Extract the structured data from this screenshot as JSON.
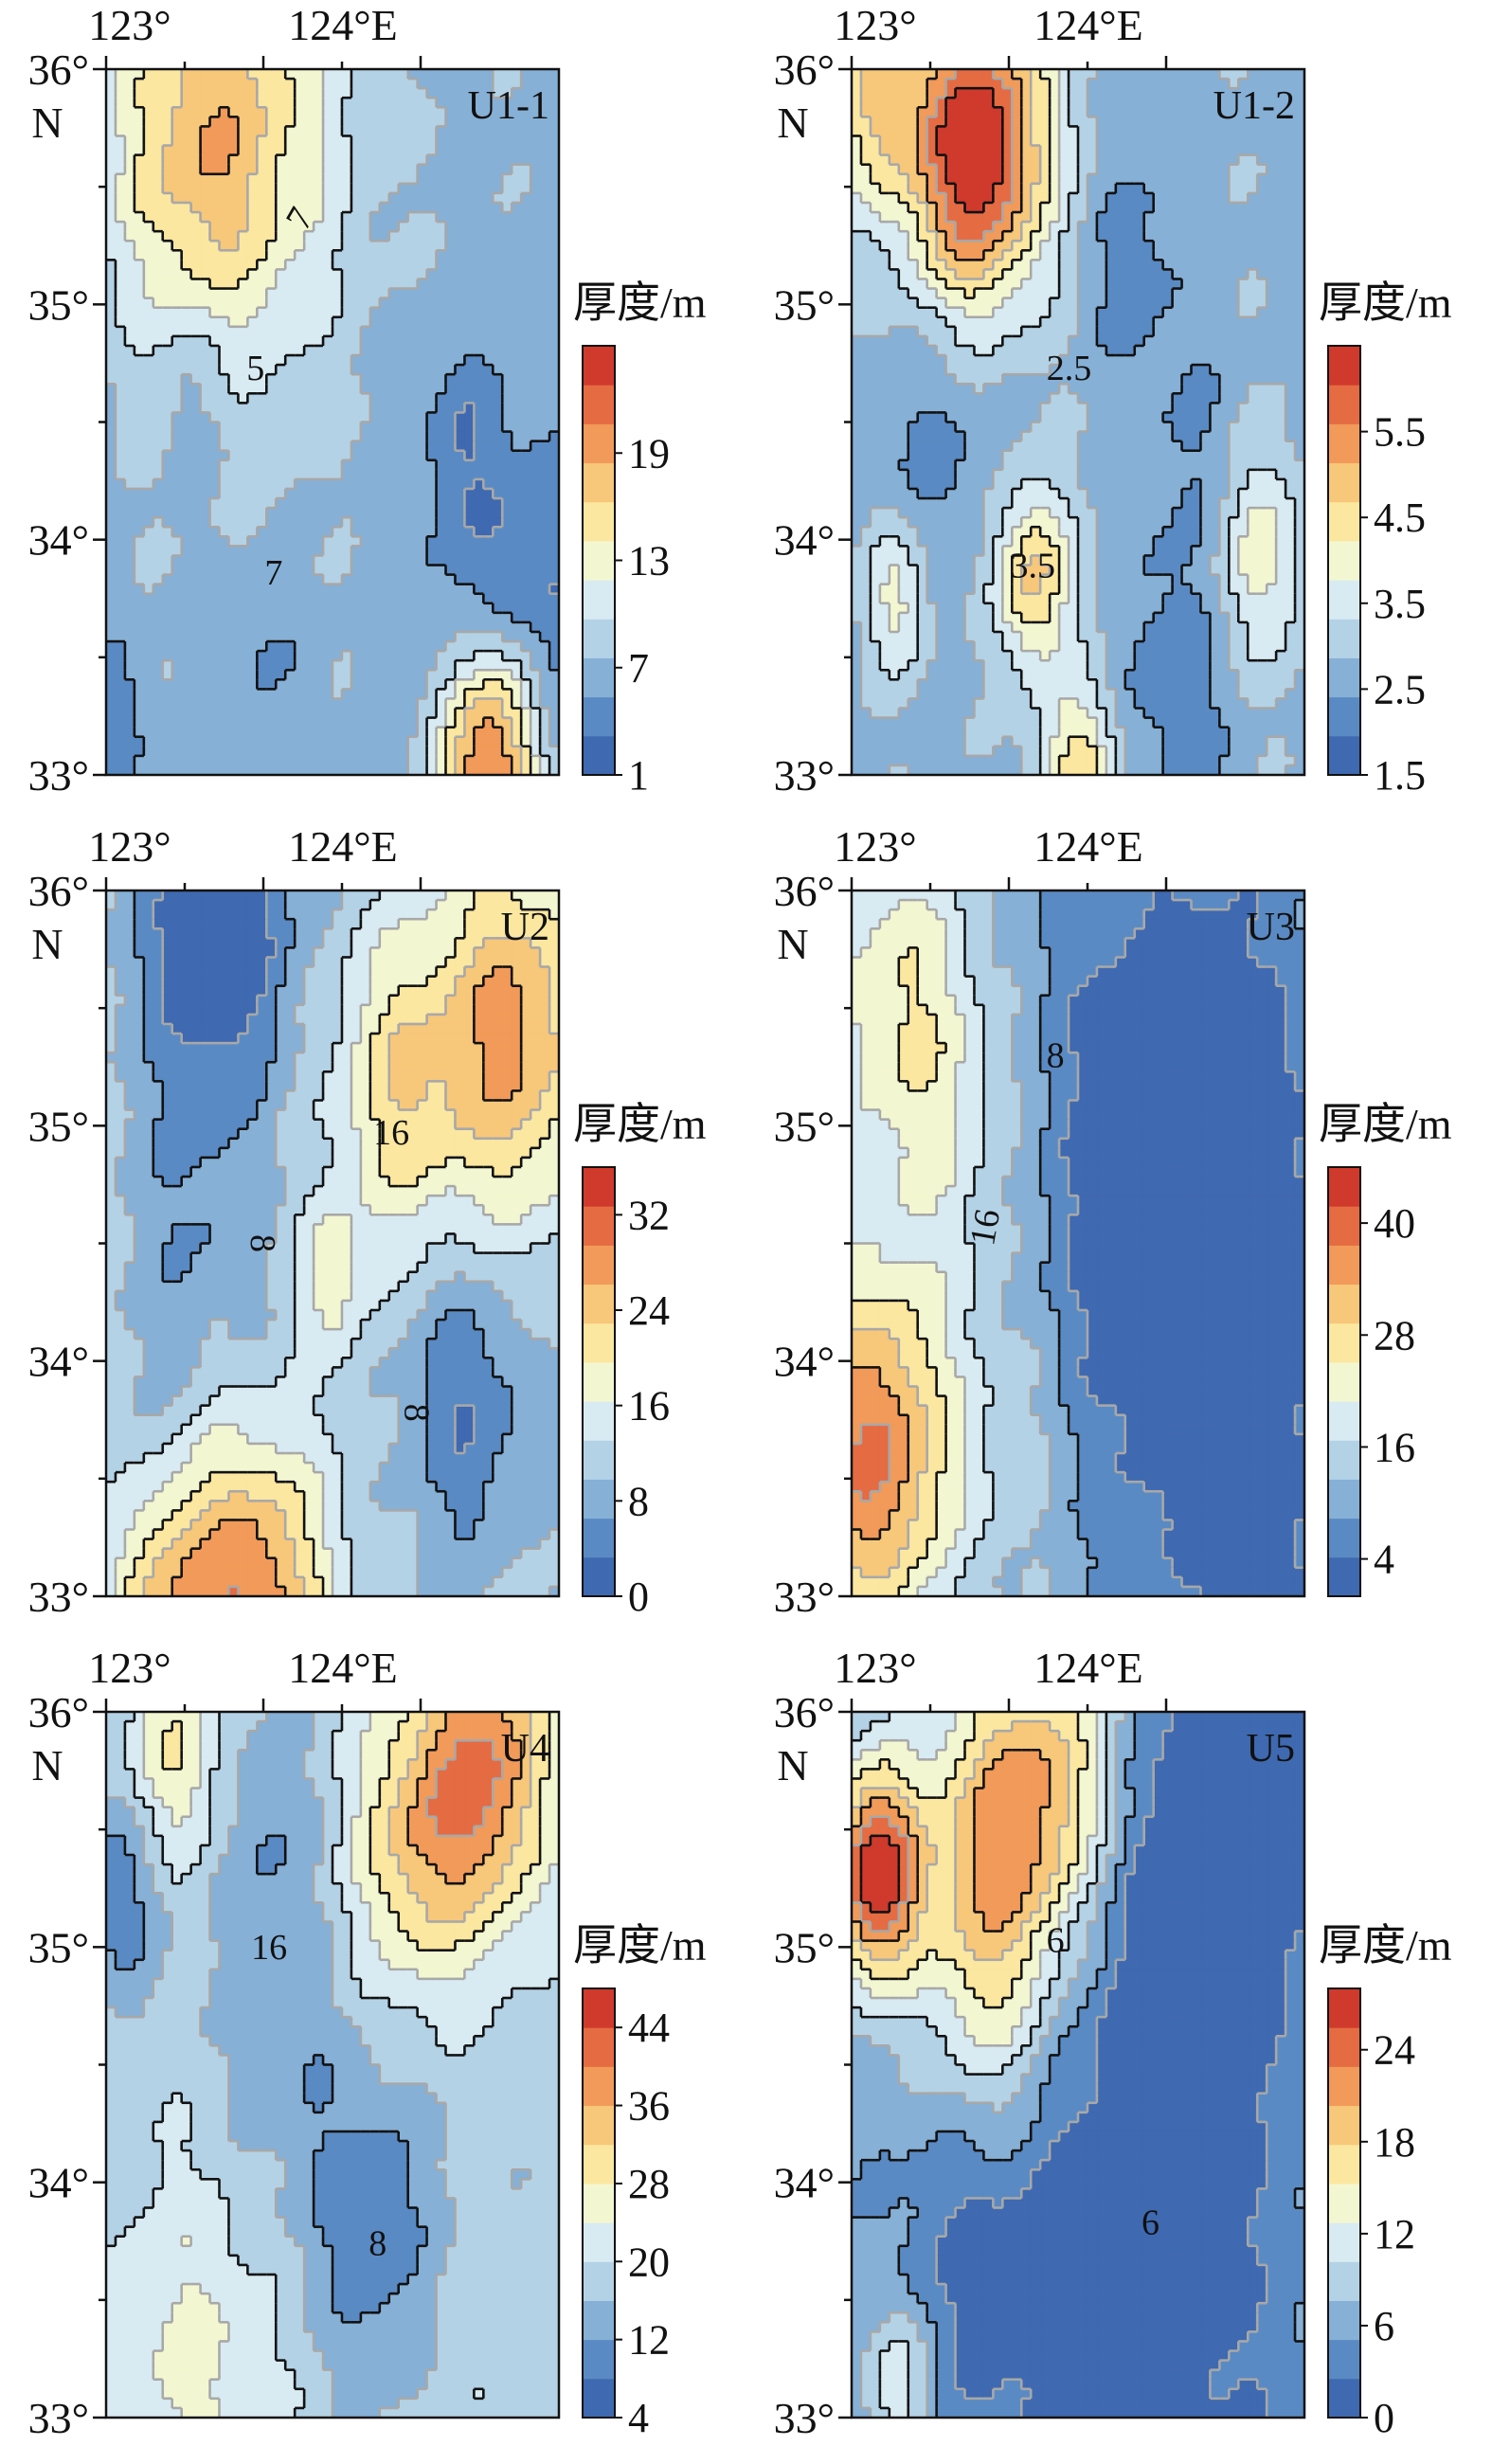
{
  "figure": {
    "colors": {
      "scale": [
        "#3f69b0",
        "#5a8ac3",
        "#86b0d6",
        "#b4d2e6",
        "#d9ebf2",
        "#f3f7d1",
        "#fbe7a0",
        "#f7c77a",
        "#f19a59",
        "#e56b43",
        "#cf3a2c"
      ],
      "contour_line": "#111111",
      "minor_contour": "#a8a8a8",
      "frame": "#111111"
    },
    "axes": {
      "x_ticks": [
        "123°",
        "124°E"
      ],
      "y_ticks": [
        "36°",
        "35°",
        "34°",
        "33°"
      ],
      "y_unit": "N"
    },
    "panels": [
      {
        "id": "U1-1",
        "label": "U1-1",
        "colorbar": {
          "title": "厚度/m",
          "ticks": [
            "19",
            "13",
            "7",
            "1"
          ],
          "range": [
            1,
            25
          ]
        },
        "contour_labels": [
          "7",
          "5",
          "7"
        ],
        "field_range": [
          1,
          25
        ]
      },
      {
        "id": "U1-2",
        "label": "U1-2",
        "colorbar": {
          "title": "厚度/m",
          "ticks": [
            "5.5",
            "4.5",
            "3.5",
            "2.5",
            "1.5"
          ],
          "range": [
            1.5,
            6.5
          ]
        },
        "contour_labels": [
          "2.5",
          "3.5"
        ],
        "field_range": [
          1.5,
          6.5
        ]
      },
      {
        "id": "U2",
        "label": "U2",
        "colorbar": {
          "title": "厚度/m",
          "ticks": [
            "32",
            "24",
            "16",
            "8",
            "0"
          ],
          "range": [
            0,
            36
          ]
        },
        "contour_labels": [
          "16",
          "8",
          "8"
        ],
        "field_range": [
          0,
          36
        ]
      },
      {
        "id": "U3",
        "label": "U3",
        "colorbar": {
          "title": "厚度/m",
          "ticks": [
            "40",
            "28",
            "16",
            "4"
          ],
          "range": [
            0,
            46
          ]
        },
        "contour_labels": [
          "8",
          "16"
        ],
        "field_range": [
          0,
          46
        ]
      },
      {
        "id": "U4",
        "label": "U4",
        "colorbar": {
          "title": "厚度/m",
          "ticks": [
            "44",
            "36",
            "28",
            "20",
            "12",
            "4"
          ],
          "range": [
            4,
            48
          ]
        },
        "contour_labels": [
          "16",
          "8"
        ],
        "field_range": [
          4,
          48
        ]
      },
      {
        "id": "U5",
        "label": "U5",
        "colorbar": {
          "title": "厚度/m",
          "ticks": [
            "24",
            "18",
            "12",
            "6",
            "0"
          ],
          "range": [
            0,
            28
          ]
        },
        "contour_labels": [
          "6",
          "6"
        ],
        "field_range": [
          0,
          28
        ]
      }
    ]
  }
}
